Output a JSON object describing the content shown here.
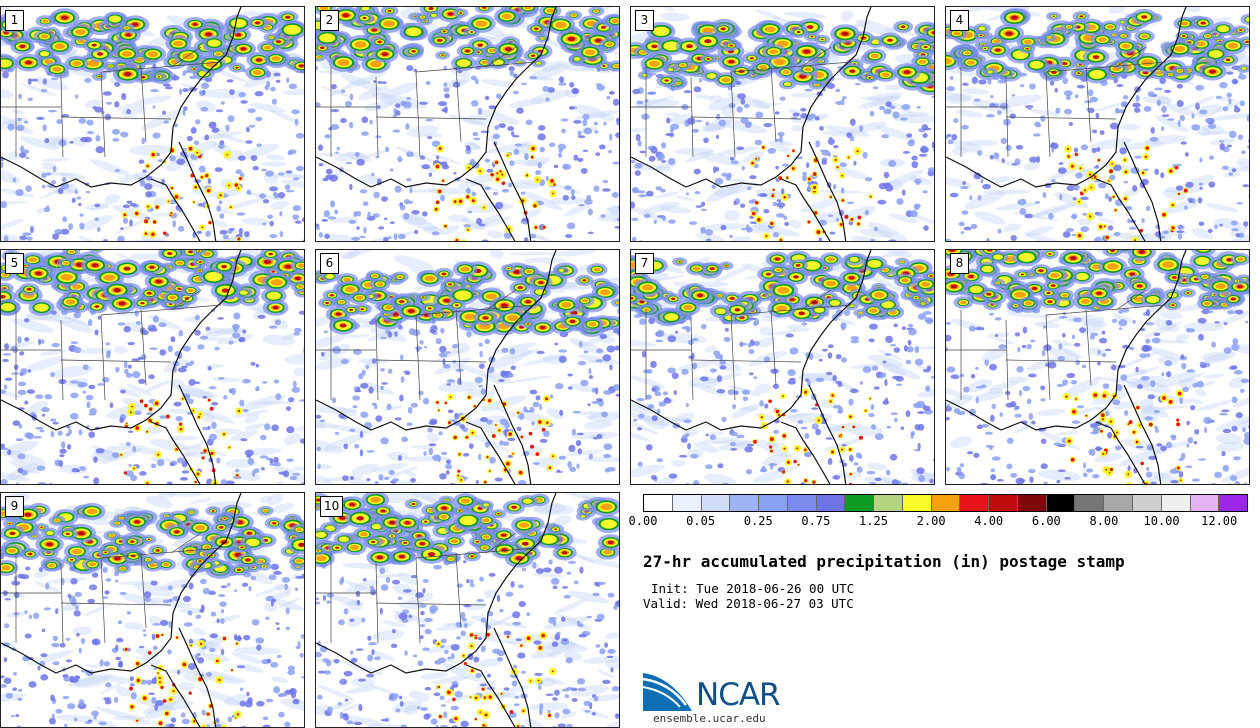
{
  "title": "27-hr accumulated precipitation (in) postage stamp",
  "init": "Init: Tue 2018-06-26 00 UTC",
  "valid": "Valid: Wed 2018-06-27 03 UTC",
  "logo": {
    "name": "NCAR",
    "url": "ensemble.ucar.edu"
  },
  "members": [
    "1",
    "2",
    "3",
    "4",
    "5",
    "6",
    "7",
    "8",
    "9",
    "10"
  ],
  "colorbar": {
    "colors": [
      "#ffffff",
      "#ebf0ff",
      "#d1dcfa",
      "#9db4f2",
      "#8aa0f4",
      "#7b8cf0",
      "#6d74ea",
      "#0d9b26",
      "#b4d57e",
      "#fafa2a",
      "#f7a10d",
      "#e8141a",
      "#c10c0e",
      "#7e0808",
      "#000000",
      "#767676",
      "#a8a8a8",
      "#cfcfcf",
      "#efefef",
      "#e3b4f2",
      "#9b28e6"
    ],
    "tick_labels": [
      "0.00",
      "0.05",
      "0.25",
      "0.75",
      "1.25",
      "2.00",
      "4.00",
      "6.00",
      "8.00",
      "10.00",
      "12.00"
    ]
  }
}
